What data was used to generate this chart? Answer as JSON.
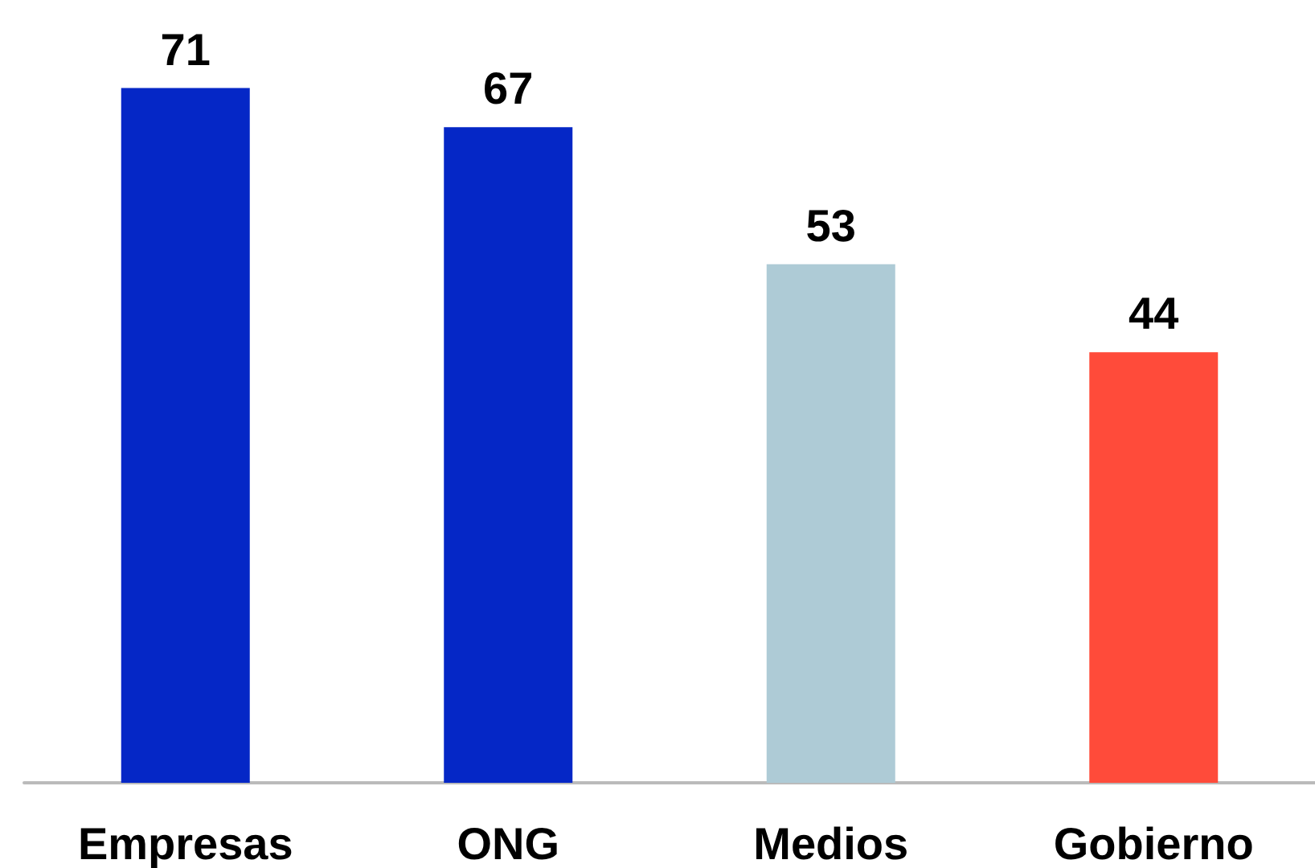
{
  "chart_data": {
    "type": "bar",
    "categories": [
      "Empresas",
      "ONG",
      "Medios",
      "Gobierno"
    ],
    "values": [
      71,
      67,
      53,
      44
    ],
    "colors": [
      "#0527c6",
      "#0527c6",
      "#aecbd6",
      "#ff4b3a"
    ],
    "data_labels": true
  }
}
